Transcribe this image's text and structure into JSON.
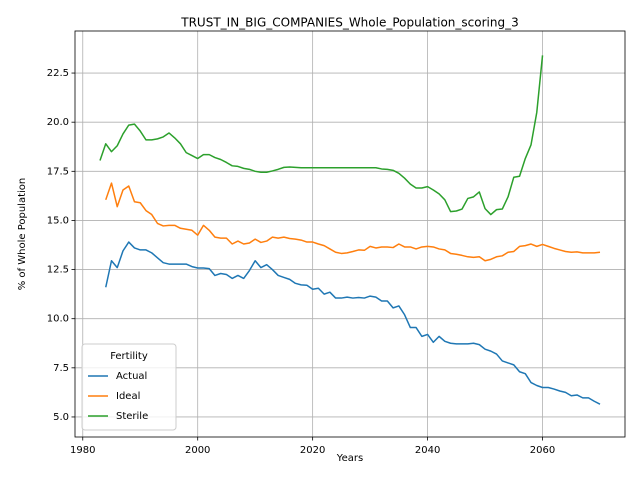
{
  "chart_data": {
    "type": "line",
    "title": "TRUST_IN_BIG_COMPANIES_Whole_Population_scoring_3",
    "x_label": "Years",
    "y_label": "% of Whole Population",
    "legend_title": "Fertility",
    "legend_position": "lower left",
    "grid": true,
    "xlim": [
      1978.65,
      2074.35
    ],
    "xticks": [
      1980,
      2000,
      2020,
      2040,
      2060
    ],
    "ylim": [
      3.98,
      24.64
    ],
    "yticks": [
      {
        "value": 5,
        "label": "5.0"
      },
      7.5,
      {
        "value": 10,
        "label": "10.0"
      },
      12.5,
      {
        "value": 15,
        "label": "15.0"
      },
      17.5,
      {
        "value": 20,
        "label": "20.0"
      },
      22.5
    ],
    "x": [
      1983,
      1984,
      1985,
      1986,
      1987,
      1988,
      1989,
      1990,
      1991,
      1992,
      1993,
      1994,
      1995,
      1996,
      1997,
      1998,
      1999,
      2000,
      2001,
      2002,
      2003,
      2004,
      2005,
      2006,
      2007,
      2008,
      2009,
      2010,
      2011,
      2012,
      2013,
      2014,
      2015,
      2016,
      2017,
      2018,
      2019,
      2020,
      2021,
      2022,
      2023,
      2024,
      2025,
      2026,
      2027,
      2028,
      2029,
      2030,
      2031,
      2032,
      2033,
      2034,
      2035,
      2036,
      2037,
      2038,
      2039,
      2040,
      2041,
      2042,
      2043,
      2044,
      2045,
      2046,
      2047,
      2048,
      2049,
      2050,
      2051,
      2052,
      2053,
      2054,
      2055,
      2056,
      2057,
      2058,
      2059,
      2060,
      2061,
      2062,
      2063,
      2064,
      2065,
      2066,
      2067,
      2068,
      2069,
      2070
    ],
    "series": [
      {
        "name": "Actual",
        "color": "#1f77b4",
        "values": [
          null,
          11.6,
          12.95,
          12.6,
          13.45,
          13.9,
          13.6,
          13.5,
          13.5,
          13.35,
          13.1,
          12.85,
          12.78,
          12.78,
          12.78,
          12.78,
          12.65,
          12.58,
          12.58,
          12.55,
          12.2,
          12.3,
          12.25,
          12.05,
          12.2,
          12.05,
          12.45,
          12.95,
          12.6,
          12.75,
          12.5,
          12.2,
          12.1,
          12.0,
          11.8,
          11.72,
          11.7,
          11.5,
          11.55,
          11.25,
          11.35,
          11.05,
          11.05,
          11.1,
          11.05,
          11.08,
          11.05,
          11.15,
          11.1,
          10.9,
          10.9,
          10.55,
          10.65,
          10.2,
          9.55,
          9.55,
          9.1,
          9.2,
          8.8,
          9.1,
          8.85,
          8.75,
          8.72,
          8.72,
          8.72,
          8.75,
          8.68,
          8.45,
          8.35,
          8.2,
          7.85,
          7.75,
          7.65,
          7.3,
          7.2,
          6.75,
          6.6,
          6.5,
          6.5,
          6.42,
          6.32,
          6.25,
          6.08,
          6.12,
          5.97,
          5.97,
          5.8,
          5.65
        ]
      },
      {
        "name": "Ideal",
        "color": "#ff7f0e",
        "values": [
          null,
          16.05,
          16.9,
          15.7,
          16.55,
          16.75,
          15.95,
          15.9,
          15.5,
          15.3,
          14.85,
          14.72,
          14.75,
          14.75,
          14.6,
          14.55,
          14.5,
          14.25,
          14.75,
          14.5,
          14.15,
          14.1,
          14.1,
          13.8,
          13.95,
          13.8,
          13.85,
          14.05,
          13.88,
          13.95,
          14.15,
          14.1,
          14.15,
          14.08,
          14.05,
          14.0,
          13.9,
          13.9,
          13.8,
          13.72,
          13.55,
          13.38,
          13.32,
          13.35,
          13.42,
          13.5,
          13.48,
          13.68,
          13.6,
          13.65,
          13.65,
          13.62,
          13.8,
          13.65,
          13.65,
          13.55,
          13.65,
          13.68,
          13.65,
          13.55,
          13.5,
          13.32,
          13.28,
          13.22,
          13.15,
          13.12,
          13.15,
          12.95,
          13.02,
          13.15,
          13.2,
          13.38,
          13.42,
          13.68,
          13.72,
          13.8,
          13.68,
          13.78,
          13.68,
          13.58,
          13.5,
          13.42,
          13.38,
          13.4,
          13.35,
          13.35,
          13.35,
          13.38
        ]
      },
      {
        "name": "Sterile",
        "color": "#2ca02c",
        "values": [
          18.05,
          18.9,
          18.5,
          18.8,
          19.4,
          19.85,
          19.9,
          19.55,
          19.1,
          19.1,
          19.15,
          19.25,
          19.45,
          19.2,
          18.9,
          18.45,
          18.3,
          18.15,
          18.35,
          18.35,
          18.2,
          18.1,
          17.95,
          17.78,
          17.75,
          17.65,
          17.6,
          17.5,
          17.45,
          17.45,
          17.52,
          17.6,
          17.7,
          17.72,
          17.7,
          17.68,
          17.68,
          17.68,
          17.68,
          17.68,
          17.68,
          17.68,
          17.68,
          17.68,
          17.68,
          17.68,
          17.68,
          17.68,
          17.68,
          17.62,
          17.6,
          17.55,
          17.4,
          17.15,
          16.85,
          16.65,
          16.65,
          16.72,
          16.55,
          16.35,
          16.05,
          15.45,
          15.48,
          15.58,
          16.12,
          16.2,
          16.45,
          15.6,
          15.3,
          15.55,
          15.58,
          16.2,
          17.2,
          17.25,
          18.15,
          18.85,
          20.5,
          23.4,
          null,
          null,
          null,
          null,
          null,
          null,
          null,
          null,
          null,
          null
        ]
      }
    ]
  }
}
